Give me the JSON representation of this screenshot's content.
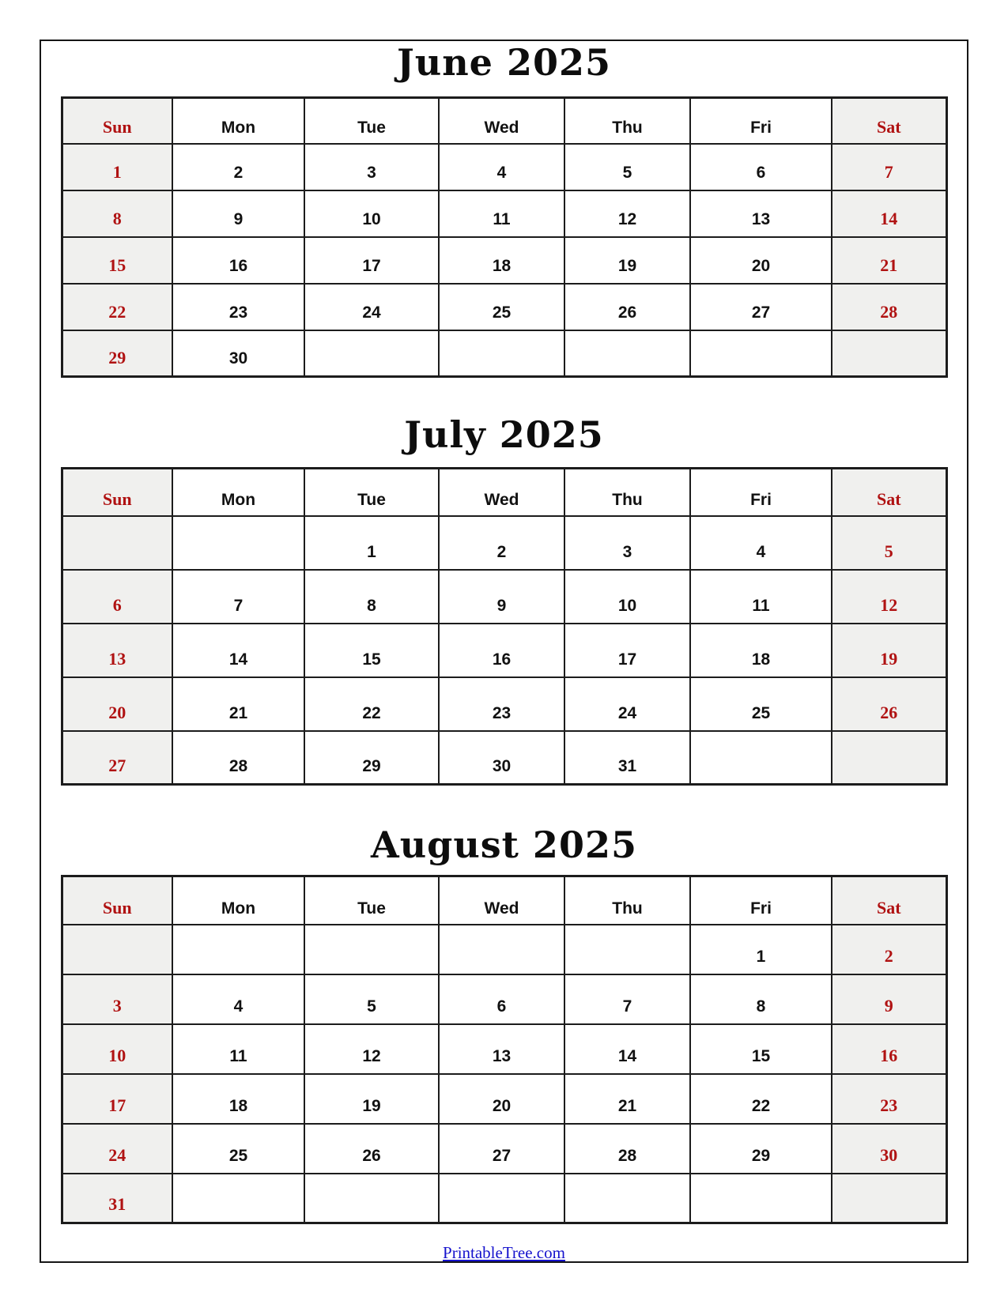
{
  "page": {
    "footer_link_label": "PrintableTree.com"
  },
  "colors": {
    "weekend_red": "#b01212",
    "weekend_background": "#f0f0ee",
    "grid_black": "#1c1c1c",
    "link_blue": "#1512cd"
  },
  "weekdays": [
    "Sun",
    "Mon",
    "Tue",
    "Wed",
    "Thu",
    "Fri",
    "Sat"
  ],
  "months": [
    {
      "id": "june",
      "title": "June 2025",
      "rows": [
        [
          "1",
          "2",
          "3",
          "4",
          "5",
          "6",
          "7"
        ],
        [
          "8",
          "9",
          "10",
          "11",
          "12",
          "13",
          "14"
        ],
        [
          "15",
          "16",
          "17",
          "18",
          "19",
          "20",
          "21"
        ],
        [
          "22",
          "23",
          "24",
          "25",
          "26",
          "27",
          "28"
        ],
        [
          "29",
          "30",
          "",
          "",
          "",
          "",
          ""
        ]
      ]
    },
    {
      "id": "july",
      "title": "July 2025",
      "rows": [
        [
          "",
          "",
          "1",
          "2",
          "3",
          "4",
          "5"
        ],
        [
          "6",
          "7",
          "8",
          "9",
          "10",
          "11",
          "12"
        ],
        [
          "13",
          "14",
          "15",
          "16",
          "17",
          "18",
          "19"
        ],
        [
          "20",
          "21",
          "22",
          "23",
          "24",
          "25",
          "26"
        ],
        [
          "27",
          "28",
          "29",
          "30",
          "31",
          "",
          ""
        ]
      ]
    },
    {
      "id": "august",
      "title": "August 2025",
      "rows": [
        [
          "",
          "",
          "",
          "",
          "",
          "1",
          "2"
        ],
        [
          "3",
          "4",
          "5",
          "6",
          "7",
          "8",
          "9"
        ],
        [
          "10",
          "11",
          "12",
          "13",
          "14",
          "15",
          "16"
        ],
        [
          "17",
          "18",
          "19",
          "20",
          "21",
          "22",
          "23"
        ],
        [
          "24",
          "25",
          "26",
          "27",
          "28",
          "29",
          "30"
        ],
        [
          "31",
          "",
          "",
          "",
          "",
          "",
          ""
        ]
      ]
    }
  ]
}
